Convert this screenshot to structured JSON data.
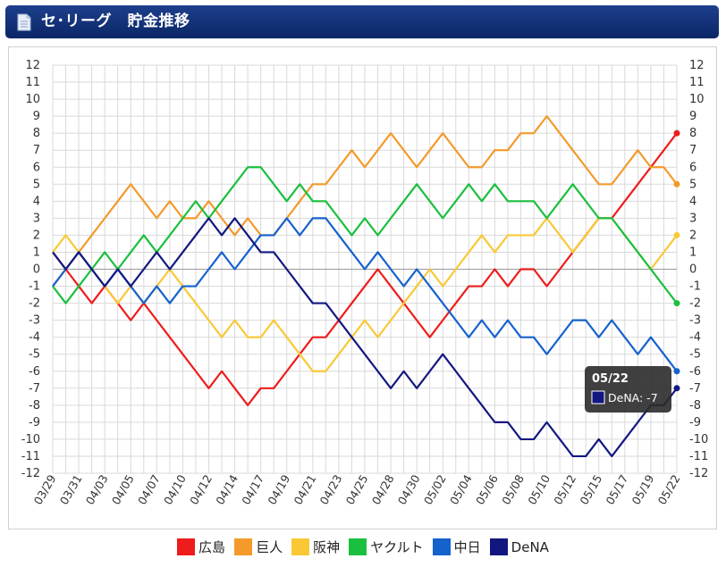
{
  "header": {
    "title": "セ･リーグ　貯金推移"
  },
  "tooltip": {
    "date": "05/22",
    "series": "DeNA",
    "value": "-7",
    "sep": ": "
  },
  "chart_data": {
    "type": "line",
    "ylim": [
      -12,
      12
    ],
    "yticks": [
      12,
      11,
      10,
      9,
      8,
      7,
      6,
      5,
      4,
      3,
      2,
      1,
      0,
      -1,
      -2,
      -3,
      -4,
      -5,
      -6,
      -7,
      -8,
      -9,
      -10,
      -11,
      -12
    ],
    "x_label_every": 2,
    "x": [
      "03/29",
      "03/30",
      "03/31",
      "04/02",
      "04/03",
      "04/04",
      "04/05",
      "04/06",
      "04/07",
      "04/09",
      "04/10",
      "04/11",
      "04/12",
      "04/13",
      "04/14",
      "04/16",
      "04/17",
      "04/18",
      "04/19",
      "04/20",
      "04/21",
      "04/22",
      "04/23",
      "04/24",
      "04/25",
      "04/27",
      "04/28",
      "04/29",
      "04/30",
      "05/01",
      "05/02",
      "05/03",
      "05/04",
      "05/05",
      "05/06",
      "05/07",
      "05/08",
      "05/09",
      "05/10",
      "05/11",
      "05/12",
      "05/13",
      "05/15",
      "05/16",
      "05/17",
      "05/18",
      "05/19",
      "05/20",
      "05/22"
    ],
    "grid": true,
    "series": [
      {
        "name": "広島",
        "color": "#ee1c1c",
        "values": [
          1,
          0,
          -1,
          -2,
          -1,
          -2,
          -3,
          -2,
          -3,
          -4,
          -5,
          -6,
          -7,
          -6,
          -7,
          -8,
          -7,
          -7,
          -6,
          -5,
          -4,
          -4,
          -3,
          -2,
          -1,
          0,
          -1,
          -2,
          -3,
          -4,
          -3,
          -2,
          -1,
          -1,
          0,
          -1,
          0,
          0,
          -1,
          0,
          1,
          2,
          3,
          3,
          4,
          5,
          6,
          7,
          8
        ]
      },
      {
        "name": "巨人",
        "color": "#f39a2b",
        "values": [
          -1,
          0,
          1,
          2,
          3,
          4,
          5,
          4,
          3,
          4,
          3,
          3,
          4,
          3,
          2,
          3,
          2,
          2,
          3,
          4,
          5,
          5,
          6,
          7,
          6,
          7,
          8,
          7,
          6,
          7,
          8,
          7,
          6,
          6,
          7,
          7,
          8,
          8,
          9,
          8,
          7,
          6,
          5,
          5,
          6,
          7,
          6,
          6,
          5
        ]
      },
      {
        "name": "阪神",
        "color": "#f8c935",
        "values": [
          1,
          2,
          1,
          0,
          -1,
          -2,
          -1,
          -2,
          -1,
          0,
          -1,
          -2,
          -3,
          -4,
          -3,
          -4,
          -4,
          -3,
          -4,
          -5,
          -6,
          -6,
          -5,
          -4,
          -3,
          -4,
          -3,
          -2,
          -1,
          0,
          -1,
          0,
          1,
          2,
          1,
          2,
          2,
          2,
          3,
          2,
          1,
          2,
          3,
          3,
          2,
          1,
          0,
          1,
          2
        ]
      },
      {
        "name": "ヤクルト",
        "color": "#1bbf3f",
        "values": [
          -1,
          -2,
          -1,
          0,
          1,
          0,
          1,
          2,
          1,
          2,
          3,
          4,
          3,
          4,
          5,
          6,
          6,
          5,
          4,
          5,
          4,
          4,
          3,
          2,
          3,
          2,
          3,
          4,
          5,
          4,
          3,
          4,
          5,
          4,
          5,
          4,
          4,
          4,
          3,
          4,
          5,
          4,
          3,
          3,
          2,
          1,
          0,
          -1,
          -2
        ]
      },
      {
        "name": "中日",
        "color": "#1562cc",
        "values": [
          -1,
          0,
          1,
          0,
          -1,
          0,
          -1,
          -2,
          -1,
          -2,
          -1,
          -1,
          0,
          1,
          0,
          1,
          2,
          2,
          3,
          2,
          3,
          3,
          2,
          1,
          0,
          1,
          0,
          -1,
          0,
          -1,
          -2,
          -3,
          -4,
          -3,
          -4,
          -3,
          -4,
          -4,
          -5,
          -4,
          -3,
          -3,
          -4,
          -3,
          -4,
          -5,
          -4,
          -5,
          -6
        ]
      },
      {
        "name": "DeNA",
        "color": "#121780",
        "values": [
          1,
          0,
          1,
          0,
          -1,
          0,
          -1,
          0,
          1,
          0,
          1,
          2,
          3,
          2,
          3,
          2,
          1,
          1,
          0,
          -1,
          -2,
          -2,
          -3,
          -4,
          -5,
          -6,
          -7,
          -6,
          -7,
          -6,
          -5,
          -6,
          -7,
          -8,
          -9,
          -9,
          -10,
          -10,
          -9,
          -10,
          -11,
          -11,
          -10,
          -11,
          -10,
          -9,
          -8,
          -8,
          -7
        ]
      }
    ]
  }
}
